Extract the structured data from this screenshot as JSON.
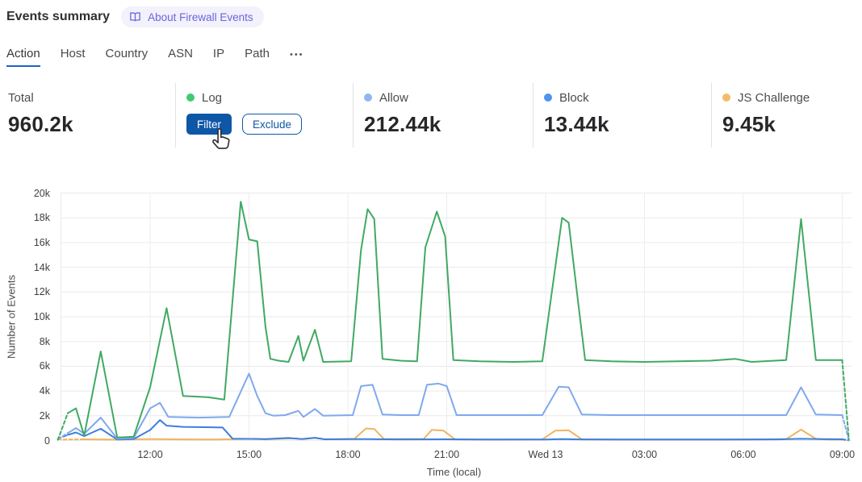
{
  "header": {
    "title": "Events summary",
    "badge": {
      "label": "About Firewall Events",
      "icon": "book-open-icon"
    }
  },
  "tabs": {
    "items": [
      {
        "label": "Action",
        "active": true
      },
      {
        "label": "Host",
        "active": false
      },
      {
        "label": "Country",
        "active": false
      },
      {
        "label": "ASN",
        "active": false
      },
      {
        "label": "IP",
        "active": false
      },
      {
        "label": "Path",
        "active": false
      }
    ],
    "more_label": "•••"
  },
  "stats": [
    {
      "label": "Total",
      "value": "960.2k"
    },
    {
      "label": "Log",
      "dot_color": "#3fcb6e",
      "buttons": [
        {
          "label": "Filter"
        },
        {
          "label": "Exclude"
        }
      ]
    },
    {
      "label": "Allow",
      "value": "212.44k",
      "dot_color": "#8fb7f3"
    },
    {
      "label": "Block",
      "value": "13.44k",
      "dot_color": "#4e94f0"
    },
    {
      "label": "JS Challenge",
      "value": "9.45k",
      "dot_color": "#f2bc69"
    }
  ],
  "chart_data": {
    "type": "line",
    "title": "",
    "xlabel": "Time (local)",
    "ylabel": "Number of Events",
    "x_unit": "decimal hours, local time; 24+ = next day (Wed 13)",
    "xlim": [
      9.2,
      33.3
    ],
    "ylim": [
      0,
      20000
    ],
    "grid": true,
    "legend_position": "none (legend shown as stat cards above)",
    "edge_style": "first and last segments of each series are dashed (partial intervals)",
    "y_ticks": [
      {
        "v": 0,
        "label": "0"
      },
      {
        "v": 2000,
        "label": "2k"
      },
      {
        "v": 4000,
        "label": "4k"
      },
      {
        "v": 6000,
        "label": "6k"
      },
      {
        "v": 8000,
        "label": "8k"
      },
      {
        "v": 10000,
        "label": "10k"
      },
      {
        "v": 12000,
        "label": "12k"
      },
      {
        "v": 14000,
        "label": "14k"
      },
      {
        "v": 16000,
        "label": "16k"
      },
      {
        "v": 18000,
        "label": "18k"
      },
      {
        "v": 20000,
        "label": "20k"
      }
    ],
    "x_ticks": [
      {
        "t": 12,
        "label": "12:00"
      },
      {
        "t": 15,
        "label": "15:00"
      },
      {
        "t": 18,
        "label": "18:00"
      },
      {
        "t": 21,
        "label": "21:00"
      },
      {
        "t": 24,
        "label": "Wed 13"
      },
      {
        "t": 27,
        "label": "03:00"
      },
      {
        "t": 30,
        "label": "06:00"
      },
      {
        "t": 33,
        "label": "09:00"
      }
    ],
    "series": [
      {
        "id": "log",
        "name": "Log",
        "color": "#41a963",
        "points": [
          [
            9.2,
            50
          ],
          [
            9.5,
            2200
          ],
          [
            9.75,
            2600
          ],
          [
            10.0,
            400
          ],
          [
            10.5,
            7200
          ],
          [
            11.0,
            250
          ],
          [
            11.5,
            300
          ],
          [
            12.0,
            4300
          ],
          [
            12.5,
            10700
          ],
          [
            13.0,
            3600
          ],
          [
            13.75,
            3500
          ],
          [
            14.25,
            3300
          ],
          [
            14.75,
            19300
          ],
          [
            15.0,
            16250
          ],
          [
            15.25,
            16100
          ],
          [
            15.5,
            9200
          ],
          [
            15.65,
            6600
          ],
          [
            15.9,
            6450
          ],
          [
            16.2,
            6350
          ],
          [
            16.5,
            8450
          ],
          [
            16.65,
            6450
          ],
          [
            17.0,
            8950
          ],
          [
            17.25,
            6350
          ],
          [
            18.1,
            6400
          ],
          [
            18.4,
            15400
          ],
          [
            18.6,
            18700
          ],
          [
            18.8,
            17900
          ],
          [
            19.05,
            6600
          ],
          [
            19.6,
            6450
          ],
          [
            20.1,
            6400
          ],
          [
            20.35,
            15600
          ],
          [
            20.7,
            18500
          ],
          [
            20.95,
            16500
          ],
          [
            21.2,
            6500
          ],
          [
            22.0,
            6400
          ],
          [
            23.0,
            6350
          ],
          [
            23.9,
            6400
          ],
          [
            24.5,
            18000
          ],
          [
            24.7,
            17600
          ],
          [
            25.0,
            10900
          ],
          [
            25.2,
            6500
          ],
          [
            26.0,
            6400
          ],
          [
            27.0,
            6350
          ],
          [
            28.0,
            6400
          ],
          [
            29.0,
            6450
          ],
          [
            29.75,
            6600
          ],
          [
            30.25,
            6350
          ],
          [
            31.3,
            6500
          ],
          [
            31.75,
            17900
          ],
          [
            32.2,
            6500
          ],
          [
            33.0,
            6500
          ],
          [
            33.2,
            100
          ]
        ]
      },
      {
        "id": "allow",
        "name": "Allow",
        "color": "#7fa9ed",
        "points": [
          [
            9.2,
            100
          ],
          [
            9.5,
            600
          ],
          [
            9.75,
            1000
          ],
          [
            10.0,
            550
          ],
          [
            10.5,
            1850
          ],
          [
            11.0,
            150
          ],
          [
            11.5,
            200
          ],
          [
            12.0,
            2600
          ],
          [
            12.3,
            3050
          ],
          [
            12.55,
            1900
          ],
          [
            13.5,
            1850
          ],
          [
            14.4,
            1900
          ],
          [
            15.0,
            5400
          ],
          [
            15.25,
            3600
          ],
          [
            15.5,
            2200
          ],
          [
            15.75,
            2000
          ],
          [
            16.1,
            2050
          ],
          [
            16.5,
            2400
          ],
          [
            16.65,
            1900
          ],
          [
            17.0,
            2550
          ],
          [
            17.25,
            2000
          ],
          [
            18.15,
            2050
          ],
          [
            18.4,
            4400
          ],
          [
            18.75,
            4500
          ],
          [
            19.05,
            2100
          ],
          [
            19.6,
            2050
          ],
          [
            20.15,
            2050
          ],
          [
            20.4,
            4500
          ],
          [
            20.75,
            4600
          ],
          [
            21.0,
            4400
          ],
          [
            21.3,
            2050
          ],
          [
            22.5,
            2050
          ],
          [
            23.9,
            2050
          ],
          [
            24.4,
            4350
          ],
          [
            24.7,
            4300
          ],
          [
            25.1,
            2100
          ],
          [
            26.0,
            2050
          ],
          [
            28.0,
            2050
          ],
          [
            30.0,
            2050
          ],
          [
            31.3,
            2050
          ],
          [
            31.75,
            4300
          ],
          [
            32.2,
            2100
          ],
          [
            33.0,
            2050
          ],
          [
            33.2,
            50
          ]
        ]
      },
      {
        "id": "block",
        "name": "Block",
        "color": "#3c7edf",
        "points": [
          [
            9.2,
            150
          ],
          [
            9.5,
            450
          ],
          [
            9.75,
            650
          ],
          [
            10.0,
            350
          ],
          [
            10.5,
            950
          ],
          [
            11.0,
            80
          ],
          [
            11.5,
            120
          ],
          [
            12.0,
            850
          ],
          [
            12.3,
            1650
          ],
          [
            12.5,
            1200
          ],
          [
            13.0,
            1100
          ],
          [
            14.2,
            1050
          ],
          [
            14.5,
            150
          ],
          [
            15.5,
            120
          ],
          [
            16.2,
            200
          ],
          [
            16.6,
            120
          ],
          [
            17.0,
            220
          ],
          [
            17.3,
            100
          ],
          [
            18.5,
            120
          ],
          [
            19.5,
            90
          ],
          [
            21.0,
            100
          ],
          [
            22.0,
            80
          ],
          [
            24.0,
            80
          ],
          [
            24.5,
            110
          ],
          [
            25.0,
            90
          ],
          [
            27.0,
            80
          ],
          [
            29.0,
            80
          ],
          [
            31.0,
            90
          ],
          [
            31.75,
            140
          ],
          [
            32.3,
            110
          ],
          [
            33.0,
            100
          ],
          [
            33.2,
            20
          ]
        ]
      },
      {
        "id": "js-challenge",
        "name": "JS Challenge",
        "color": "#efb55e",
        "points": [
          [
            9.2,
            80
          ],
          [
            10.0,
            100
          ],
          [
            11.0,
            70
          ],
          [
            12.0,
            110
          ],
          [
            13.0,
            90
          ],
          [
            14.0,
            80
          ],
          [
            15.2,
            140
          ],
          [
            15.5,
            90
          ],
          [
            16.3,
            170
          ],
          [
            16.7,
            120
          ],
          [
            17.0,
            200
          ],
          [
            17.3,
            90
          ],
          [
            18.2,
            140
          ],
          [
            18.55,
            980
          ],
          [
            18.8,
            930
          ],
          [
            19.1,
            110
          ],
          [
            20.3,
            130
          ],
          [
            20.55,
            860
          ],
          [
            20.9,
            800
          ],
          [
            21.25,
            90
          ],
          [
            22.5,
            70
          ],
          [
            23.9,
            90
          ],
          [
            24.3,
            800
          ],
          [
            24.7,
            820
          ],
          [
            25.1,
            90
          ],
          [
            26.5,
            70
          ],
          [
            28.0,
            70
          ],
          [
            30.0,
            70
          ],
          [
            31.3,
            110
          ],
          [
            31.75,
            880
          ],
          [
            32.2,
            140
          ],
          [
            32.6,
            70
          ],
          [
            33.0,
            70
          ],
          [
            33.2,
            20
          ]
        ]
      }
    ]
  }
}
